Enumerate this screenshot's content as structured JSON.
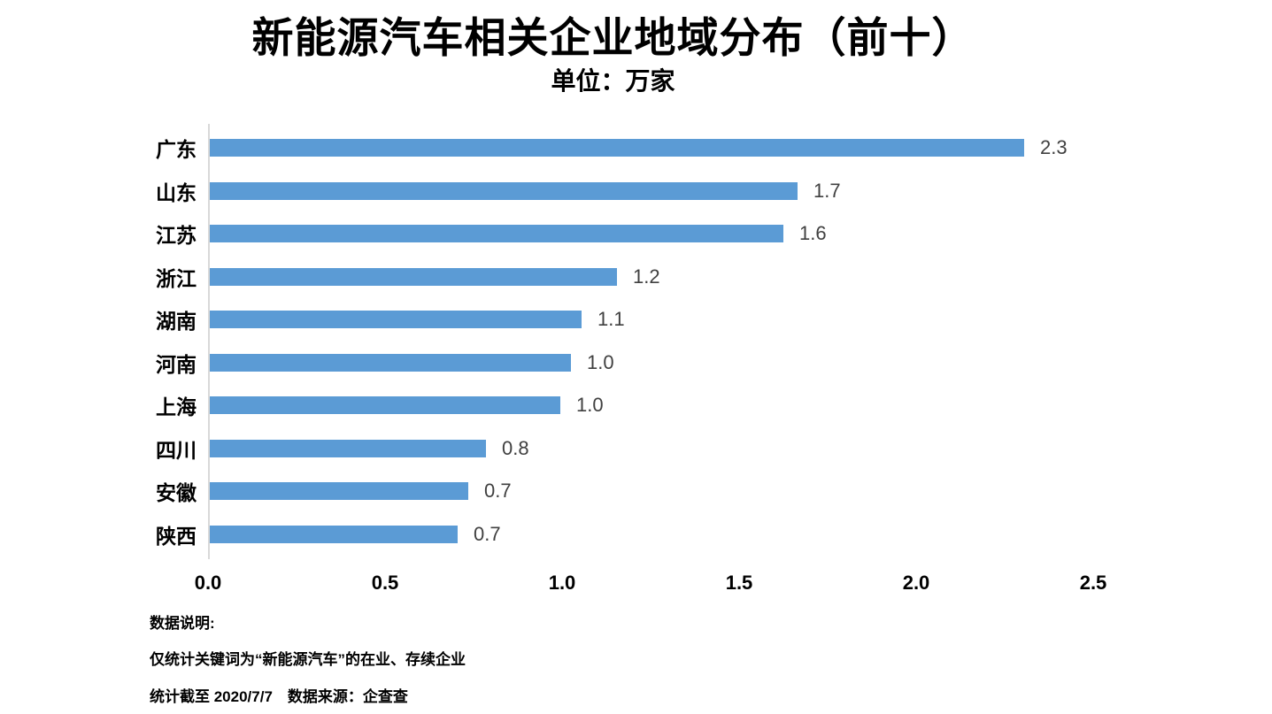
{
  "header": {
    "title": "新能源汽车相关企业地域分布（前十）",
    "subtitle": "单位：万家"
  },
  "chart_data": {
    "type": "bar",
    "orientation": "horizontal",
    "title": "新能源汽车相关企业地域分布（前十）",
    "unit": "万家",
    "categories": [
      "广东",
      "山东",
      "江苏",
      "浙江",
      "湖南",
      "河南",
      "上海",
      "四川",
      "安徽",
      "陕西"
    ],
    "values": [
      2.3,
      1.7,
      1.6,
      1.2,
      1.1,
      1.0,
      1.0,
      0.8,
      0.7,
      0.7
    ],
    "value_labels": [
      "2.3",
      "1.7",
      "1.6",
      "1.2",
      "1.1",
      "1.0",
      "1.0",
      "0.8",
      "0.7",
      "0.7"
    ],
    "bar_lengths_units": [
      2.3,
      1.66,
      1.62,
      1.15,
      1.05,
      1.02,
      0.99,
      0.78,
      0.73,
      0.7
    ],
    "x_ticks": [
      "0.0",
      "0.5",
      "1.0",
      "1.5",
      "2.0",
      "2.5"
    ],
    "x_tick_values": [
      0,
      0.5,
      1.0,
      1.5,
      2.0,
      2.5
    ],
    "xlim": [
      0,
      2.5
    ],
    "grid": false,
    "legend": false,
    "data_labels": true,
    "colors": {
      "bar": "#5b9bd5",
      "value_label": "#404040",
      "axis_line": "#d9d9d9",
      "text": "#000000",
      "background": "#ffffff"
    }
  },
  "footer": {
    "note_heading": "数据说明:",
    "note_line1": "仅统计关键词为“新能源汽车”的在业、存续企业",
    "note_line2": "统计截至 2020/7/7　数据来源：企查查"
  }
}
